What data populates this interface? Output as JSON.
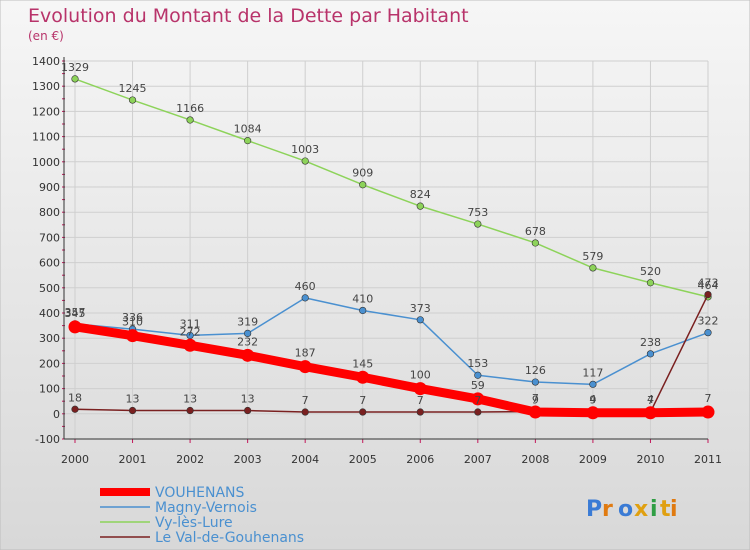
{
  "title": "Evolution du Montant de la Dette par Habitant",
  "subtitle": "(en €)",
  "logo_text": "Proxiti",
  "colors": {
    "title": "#b8336a",
    "background_top": "#f4f4f4",
    "background_bottom": "#dcdcdc",
    "axis": "#333333",
    "grid": "#d0d0d0",
    "tick_accent": "#c2185b",
    "label": "#444444"
  },
  "chart_data": {
    "type": "line",
    "x": [
      "2000",
      "2001",
      "2002",
      "2003",
      "2004",
      "2005",
      "2006",
      "2007",
      "2008",
      "2009",
      "2010",
      "2011"
    ],
    "ylim": [
      -100,
      1400
    ],
    "yticks": [
      "-100",
      "0",
      "100",
      "200",
      "300",
      "400",
      "500",
      "600",
      "700",
      "800",
      "900",
      "1000",
      "1100",
      "1200",
      "1300",
      "1400"
    ],
    "grid": true,
    "legend_position": "bottom-left",
    "series": [
      {
        "name": "Vy-lès-Lure",
        "color": "#8dd35a",
        "values": [
          1329,
          1245,
          1166,
          1084,
          1003,
          909,
          824,
          753,
          678,
          579,
          520,
          464
        ],
        "labels": [
          "1329",
          "1245",
          "1166",
          "1084",
          "1003",
          "909",
          "824",
          "753",
          "678",
          "579",
          "520",
          "464"
        ]
      },
      {
        "name": "Magny-Vernois",
        "color": "#4a90d0",
        "values": [
          357,
          336,
          311,
          319,
          460,
          410,
          373,
          153,
          126,
          117,
          238,
          322
        ],
        "labels": [
          "357",
          "336",
          "311",
          "319",
          "460",
          "410",
          "373",
          "153",
          "126",
          "117",
          "238",
          "322"
        ]
      },
      {
        "name": "Le Val-de-Gouhenans",
        "color": "#7a2020",
        "values": [
          18,
          13,
          13,
          13,
          7,
          7,
          7,
          7,
          9,
          9,
          7,
          473
        ],
        "labels": [
          "18",
          "13",
          "13",
          "13",
          "7",
          "7",
          "7",
          "7",
          "9",
          "9",
          "7",
          "473"
        ]
      },
      {
        "name": "VOUHENANS",
        "color": "#ff0000",
        "values": [
          345,
          310,
          272,
          232,
          187,
          145,
          100,
          59,
          7,
          4,
          4,
          7
        ],
        "labels": [
          "345",
          "310",
          "272",
          "232",
          "187",
          "145",
          "100",
          "59",
          "7",
          "4",
          "4",
          "7"
        ]
      }
    ],
    "legend": [
      {
        "name": "VOUHENANS",
        "color": "#ff0000",
        "thick": true
      },
      {
        "name": "Magny-Vernois",
        "color": "#4a90d0",
        "thick": false
      },
      {
        "name": "Vy-lès-Lure",
        "color": "#8dd35a",
        "thick": false
      },
      {
        "name": "Le Val-de-Gouhenans",
        "color": "#7a2020",
        "thick": false
      }
    ]
  }
}
